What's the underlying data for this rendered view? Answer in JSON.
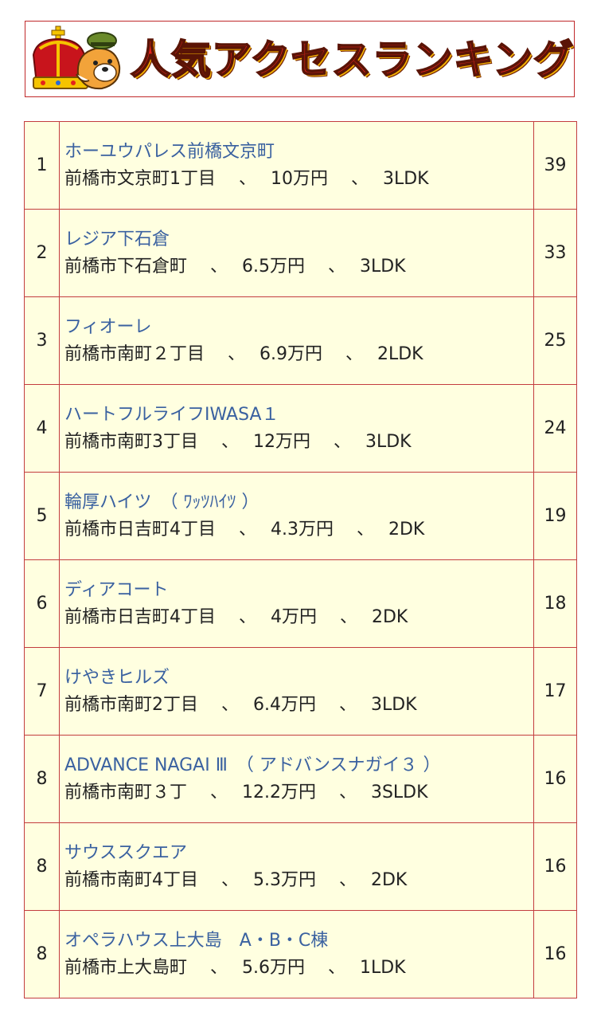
{
  "header": {
    "title": "人気アクセスランキング"
  },
  "ranking": [
    {
      "rank": "1",
      "name": "ホーユウパレス前橋文京町",
      "detail": "前橋市文京町1丁目　 、　 10万円　 、　 3LDK",
      "count": "39"
    },
    {
      "rank": "2",
      "name": "レジア下石倉",
      "detail": "前橋市下石倉町　 、　 6.5万円　 、　 3LDK",
      "count": "33"
    },
    {
      "rank": "3",
      "name": "フィオーレ",
      "detail": "前橋市南町２丁目　 、　 6.9万円　 、　 2LDK",
      "count": "25"
    },
    {
      "rank": "4",
      "name": "ハートフルライフIWASA１",
      "detail": "前橋市南町3丁目　 、　 12万円　 、　 3LDK",
      "count": "24"
    },
    {
      "rank": "5",
      "name": "輪厚ハイツ　（ ﾜｯﾂﾊｲﾂ ）",
      "detail": "前橋市日吉町4丁目　 、　 4.3万円　 、　 2DK",
      "count": "19"
    },
    {
      "rank": "6",
      "name": "ディアコート",
      "detail": "前橋市日吉町4丁目　 、　 4万円　 、　 2DK",
      "count": "18"
    },
    {
      "rank": "7",
      "name": "けやきヒルズ",
      "detail": "前橋市南町2丁目　 、　 6.4万円　 、　 3LDK",
      "count": "17"
    },
    {
      "rank": "8",
      "name": "ADVANCE NAGAI Ⅲ　（ アドバンスナガイ３ ）",
      "detail": "前橋市南町３丁　 、　 12.2万円　 、　 3SLDK",
      "count": "16"
    },
    {
      "rank": "8",
      "name": "サウススクエア",
      "detail": "前橋市南町4丁目　 、　 5.3万円　 、　 2DK",
      "count": "16"
    },
    {
      "rank": "8",
      "name": "オペラハウス上大島　A・B・C棟",
      "detail": "前橋市上大島町　 、　 5.6万円　 、　 1LDK",
      "count": "16"
    }
  ]
}
